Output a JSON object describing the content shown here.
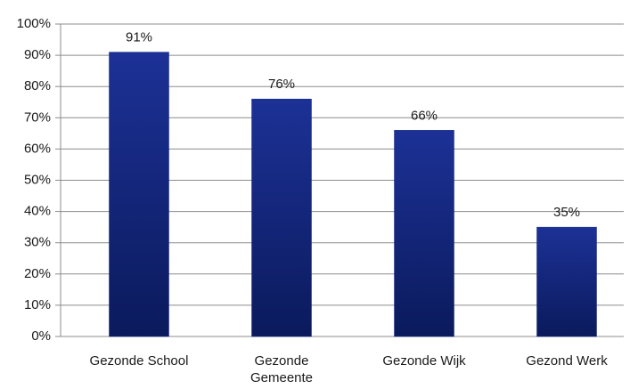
{
  "chart_data": {
    "type": "bar",
    "categories": [
      "Gezonde School",
      "Gezonde Gemeente",
      "Gezonde Wijk",
      "Gezond Werk"
    ],
    "values": [
      91,
      76,
      66,
      35
    ],
    "value_labels": [
      "91%",
      "76%",
      "66%",
      "35%"
    ],
    "color": "#142886",
    "ylim": [
      0,
      100
    ],
    "yticks": [
      {
        "value": 0,
        "label": "0%"
      },
      {
        "value": 10,
        "label": "10%"
      },
      {
        "value": 20,
        "label": "20%"
      },
      {
        "value": 30,
        "label": "30%"
      },
      {
        "value": 40,
        "label": "40%"
      },
      {
        "value": 50,
        "label": "50%"
      },
      {
        "value": 60,
        "label": "60%"
      },
      {
        "value": 70,
        "label": "70%"
      },
      {
        "value": 80,
        "label": "80%"
      },
      {
        "value": 90,
        "label": "90%"
      },
      {
        "value": 100,
        "label": "100%"
      }
    ],
    "grid": true
  }
}
